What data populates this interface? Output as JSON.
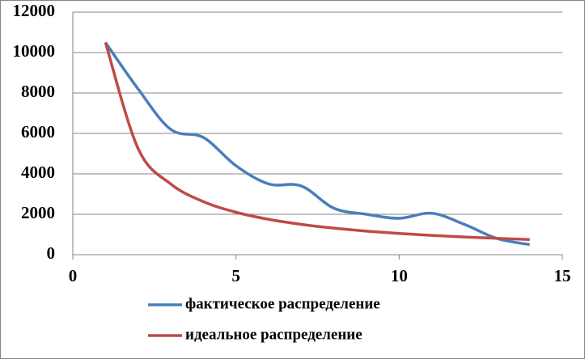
{
  "chart_data": {
    "type": "line",
    "x": [
      1,
      2,
      3,
      4,
      5,
      6,
      7,
      8,
      9,
      10,
      11,
      12,
      13,
      14
    ],
    "series": [
      {
        "name": "фактическое распределение",
        "color": "#4a7ebb",
        "values": [
          10500,
          8200,
          6200,
          5800,
          4400,
          3500,
          3400,
          2300,
          2000,
          1800,
          2050,
          1500,
          800,
          500
        ]
      },
      {
        "name": "идеальное распределение",
        "color": "#be4b48",
        "values": [
          10500,
          5250,
          3500,
          2625,
          2100,
          1750,
          1500,
          1313,
          1167,
          1050,
          955,
          875,
          808,
          750
        ]
      }
    ],
    "xlim": [
      0,
      15
    ],
    "xticks": [
      0,
      5,
      10,
      15
    ],
    "ylim": [
      0,
      12000
    ],
    "yticks": [
      0,
      2000,
      4000,
      6000,
      8000,
      10000,
      12000
    ],
    "grid": true,
    "smooth": true,
    "legend": "bottom"
  }
}
